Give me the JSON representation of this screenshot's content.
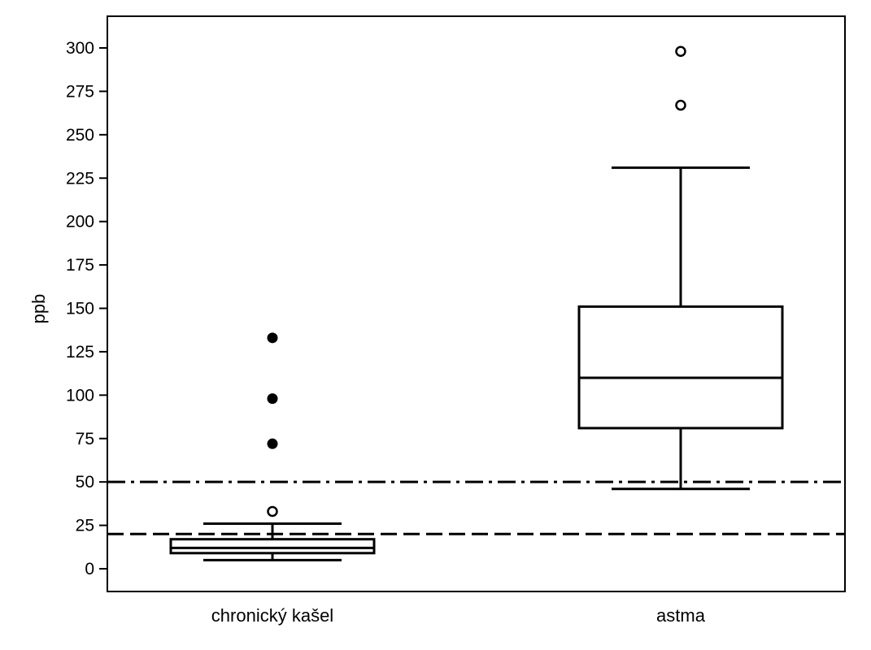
{
  "chart_data": {
    "type": "boxplot",
    "ylabel": "ppb",
    "ylim": [
      -12,
      310
    ],
    "yticks": [
      0,
      25,
      50,
      75,
      100,
      125,
      150,
      175,
      200,
      225,
      250,
      275,
      300
    ],
    "categories": [
      "chronický kašel",
      "astma"
    ],
    "boxes": [
      {
        "label": "chronický kašel",
        "whisker_low": 5,
        "q1": 9,
        "median": 12,
        "q3": 17,
        "whisker_high": 26,
        "outliers": [
          33
        ],
        "extreme_outliers": [
          72,
          98,
          133
        ]
      },
      {
        "label": "astma",
        "whisker_low": 46,
        "q1": 81,
        "median": 110,
        "q3": 151,
        "whisker_high": 231,
        "outliers": [
          267,
          298
        ],
        "extreme_outliers": []
      }
    ],
    "reference_lines": [
      {
        "value": 50,
        "style": "dash-dot"
      },
      {
        "value": 20,
        "style": "dashed"
      }
    ],
    "grid": false,
    "legend": "none"
  }
}
